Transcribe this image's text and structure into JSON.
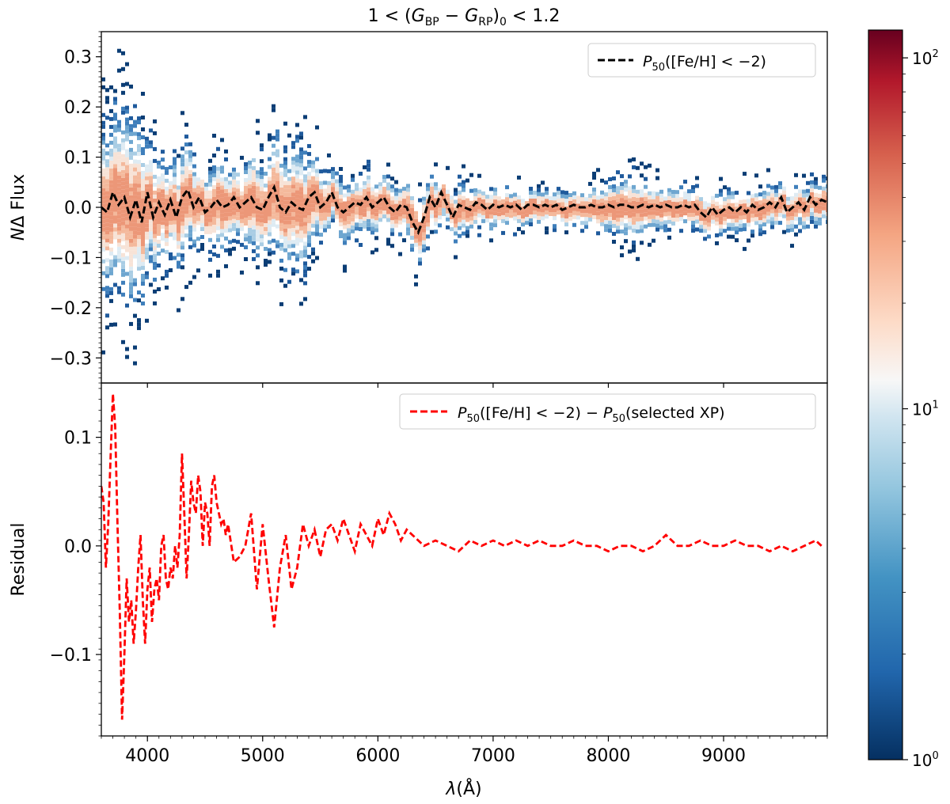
{
  "title": "1 < (G_BP − G_RP)_0 < 1.2",
  "chart_data": [
    {
      "type": "heatmap",
      "panel": "top",
      "xlabel": "",
      "ylabel": "NΔ Flux",
      "xlim": [
        3600,
        9900
      ],
      "ylim": [
        -0.35,
        0.35
      ],
      "yticks": [
        -0.3,
        -0.2,
        -0.1,
        0.0,
        0.1,
        0.2,
        0.3
      ],
      "ytick_labels": [
        "−0.3",
        "−0.2",
        "−0.1",
        "0.0",
        "0.1",
        "0.2",
        "0.3"
      ],
      "colorbar": {
        "scale": "log",
        "range": [
          1,
          120
        ],
        "ticks": [
          1,
          10,
          100
        ],
        "tick_labels": [
          "10^0",
          "10^1",
          "10^2"
        ],
        "colormap": "RdBu_r"
      },
      "series": [
        {
          "name": "P50([Fe/H] < −2)",
          "style": "dashed",
          "color": "#000000",
          "x": [
            3600,
            3650,
            3700,
            3750,
            3800,
            3850,
            3900,
            3950,
            4000,
            4050,
            4100,
            4150,
            4200,
            4250,
            4300,
            4350,
            4400,
            4450,
            4500,
            4550,
            4600,
            4650,
            4700,
            4750,
            4800,
            4850,
            4900,
            4950,
            5000,
            5050,
            5100,
            5150,
            5200,
            5250,
            5300,
            5350,
            5400,
            5450,
            5500,
            5550,
            5600,
            5650,
            5700,
            5750,
            5800,
            5850,
            5900,
            5950,
            6000,
            6050,
            6100,
            6150,
            6200,
            6250,
            6300,
            6350,
            6400,
            6450,
            6500,
            6550,
            6600,
            6650,
            6700,
            6750,
            6800,
            6850,
            6900,
            6950,
            7000,
            7050,
            7100,
            7150,
            7200,
            7250,
            7300,
            7350,
            7400,
            7450,
            7500,
            7550,
            7600,
            7650,
            7700,
            7750,
            7800,
            7850,
            7900,
            7950,
            8000,
            8050,
            8100,
            8150,
            8200,
            8250,
            8300,
            8350,
            8400,
            8450,
            8500,
            8550,
            8600,
            8650,
            8700,
            8750,
            8800,
            8850,
            8900,
            8950,
            9000,
            9050,
            9100,
            9150,
            9200,
            9250,
            9300,
            9350,
            9400,
            9450,
            9500,
            9550,
            9600,
            9650,
            9700,
            9750,
            9800,
            9850,
            9900
          ],
          "y": [
            0.0,
            -0.01,
            0.03,
            0.005,
            0.02,
            -0.02,
            0.015,
            -0.03,
            0.03,
            -0.02,
            0.01,
            -0.015,
            0.015,
            -0.02,
            0.02,
            0.035,
            0.0,
            0.02,
            -0.01,
            0.0,
            0.015,
            0.0,
            0.005,
            0.02,
            0.0,
            0.01,
            0.02,
            0.0,
            -0.005,
            0.02,
            0.04,
            0.0,
            -0.01,
            0.01,
            0.0,
            -0.005,
            0.02,
            0.03,
            0.0,
            0.01,
            0.03,
            0.0,
            -0.01,
            0.0,
            0.01,
            0.005,
            0.02,
            0.0,
            0.01,
            0.02,
            0.0,
            -0.01,
            0.005,
            0.0,
            -0.03,
            -0.05,
            -0.02,
            0.02,
            0.0,
            0.03,
            0.005,
            -0.02,
            0.005,
            0.0,
            -0.005,
            0.01,
            0.005,
            -0.005,
            0.005,
            0.0,
            0.005,
            0.0,
            0.005,
            -0.005,
            0.005,
            0.005,
            0.0,
            0.005,
            0.0,
            0.005,
            -0.005,
            0.0,
            0.005,
            0.0,
            0.0,
            0.005,
            0.0,
            0.0,
            0.005,
            0.0,
            0.005,
            0.005,
            0.0,
            0.0,
            0.005,
            0.0,
            0.005,
            0.0,
            0.005,
            0.0,
            0.0,
            0.005,
            0.0,
            0.005,
            -0.01,
            -0.02,
            0.0,
            -0.015,
            -0.005,
            0.0,
            -0.01,
            0.0,
            -0.01,
            0.005,
            -0.005,
            0.0,
            0.01,
            0.0,
            0.02,
            -0.01,
            0.0,
            0.01,
            -0.005,
            0.02,
            0.005,
            0.015,
            0.01
          ]
        }
      ],
      "density_envelope": {
        "x": [
          3600,
          3700,
          3800,
          3900,
          4000,
          4100,
          4200,
          4300,
          4400,
          4500,
          4600,
          4700,
          4800,
          4900,
          5000,
          5100,
          5200,
          5300,
          5400,
          5500,
          5600,
          5700,
          5800,
          5900,
          6000,
          6100,
          6200,
          6300,
          6400,
          6500,
          6600,
          6700,
          6800,
          6900,
          7000,
          7200,
          7400,
          7600,
          7800,
          8000,
          8200,
          8400,
          8600,
          8800,
          9000,
          9200,
          9400,
          9600,
          9800,
          9900
        ],
        "half_width": [
          0.15,
          0.16,
          0.18,
          0.17,
          0.12,
          0.1,
          0.09,
          0.11,
          0.08,
          0.07,
          0.09,
          0.07,
          0.07,
          0.1,
          0.08,
          0.11,
          0.1,
          0.12,
          0.09,
          0.06,
          0.05,
          0.06,
          0.05,
          0.06,
          0.05,
          0.05,
          0.05,
          0.06,
          0.06,
          0.05,
          0.04,
          0.05,
          0.04,
          0.04,
          0.04,
          0.035,
          0.035,
          0.035,
          0.035,
          0.05,
          0.06,
          0.04,
          0.04,
          0.04,
          0.04,
          0.04,
          0.04,
          0.04,
          0.04,
          0.04
        ]
      }
    },
    {
      "type": "line",
      "panel": "bottom",
      "xlabel": "λ(Å)",
      "ylabel": "Residual",
      "xlim": [
        3600,
        9900
      ],
      "ylim": [
        -0.175,
        0.15
      ],
      "xticks": [
        4000,
        5000,
        6000,
        7000,
        8000,
        9000
      ],
      "xtick_labels": [
        "4000",
        "5000",
        "6000",
        "7000",
        "8000",
        "9000"
      ],
      "yticks": [
        -0.1,
        0.0,
        0.1
      ],
      "ytick_labels": [
        "−0.1",
        "0.0",
        "0.1"
      ],
      "series": [
        {
          "name": "P50([Fe/H] < −2) − P50(selected XP)",
          "style": "dashed",
          "color": "#ff0000",
          "x": [
            3600,
            3620,
            3640,
            3660,
            3680,
            3700,
            3720,
            3740,
            3760,
            3780,
            3800,
            3820,
            3840,
            3860,
            3880,
            3900,
            3920,
            3940,
            3960,
            3980,
            4000,
            4020,
            4040,
            4060,
            4080,
            4100,
            4120,
            4140,
            4160,
            4180,
            4200,
            4220,
            4240,
            4260,
            4280,
            4300,
            4320,
            4340,
            4360,
            4380,
            4400,
            4420,
            4440,
            4460,
            4480,
            4500,
            4520,
            4540,
            4560,
            4580,
            4600,
            4620,
            4640,
            4660,
            4680,
            4700,
            4750,
            4800,
            4850,
            4900,
            4950,
            5000,
            5050,
            5100,
            5150,
            5200,
            5250,
            5300,
            5350,
            5400,
            5450,
            5500,
            5550,
            5600,
            5650,
            5700,
            5750,
            5800,
            5850,
            5900,
            5950,
            6000,
            6050,
            6100,
            6150,
            6200,
            6250,
            6300,
            6400,
            6500,
            6600,
            6700,
            6800,
            6900,
            7000,
            7100,
            7200,
            7300,
            7400,
            7500,
            7600,
            7700,
            7800,
            7900,
            8000,
            8100,
            8200,
            8300,
            8400,
            8500,
            8600,
            8700,
            8800,
            8900,
            9000,
            9100,
            9200,
            9300,
            9400,
            9500,
            9600,
            9700,
            9800,
            9850
          ],
          "y": [
            0.055,
            0.04,
            -0.02,
            0.02,
            0.08,
            0.14,
            0.11,
            0.02,
            -0.06,
            -0.16,
            -0.1,
            -0.03,
            -0.07,
            -0.05,
            -0.09,
            -0.06,
            -0.02,
            0.01,
            -0.05,
            -0.09,
            -0.04,
            -0.02,
            -0.07,
            -0.04,
            -0.03,
            -0.05,
            0.0,
            0.01,
            -0.03,
            -0.04,
            -0.02,
            -0.03,
            0.0,
            -0.02,
            0.01,
            0.085,
            0.03,
            -0.03,
            0.01,
            0.06,
            0.04,
            0.03,
            0.065,
            0.05,
            0.0,
            0.04,
            0.03,
            0.0,
            0.055,
            0.065,
            0.04,
            0.03,
            0.02,
            0.025,
            0.01,
            0.02,
            -0.015,
            -0.01,
            0.0,
            0.03,
            -0.04,
            0.02,
            -0.03,
            -0.075,
            -0.02,
            0.01,
            -0.04,
            -0.02,
            0.02,
            0.0,
            0.015,
            -0.01,
            0.015,
            0.02,
            0.005,
            0.025,
            0.01,
            -0.005,
            0.02,
            0.01,
            0.0,
            0.025,
            0.01,
            0.03,
            0.02,
            0.005,
            0.015,
            0.01,
            0.0,
            0.005,
            0.0,
            -0.005,
            0.005,
            0.0,
            0.005,
            0.0,
            0.005,
            0.0,
            0.005,
            0.0,
            0.0,
            0.005,
            0.0,
            0.0,
            -0.005,
            0.0,
            0.0,
            -0.005,
            0.0,
            0.01,
            0.0,
            0.0,
            0.005,
            0.0,
            0.0,
            0.005,
            0.0,
            0.0,
            -0.005,
            0.0,
            -0.005,
            0.0,
            0.005,
            0.0
          ]
        }
      ]
    }
  ]
}
